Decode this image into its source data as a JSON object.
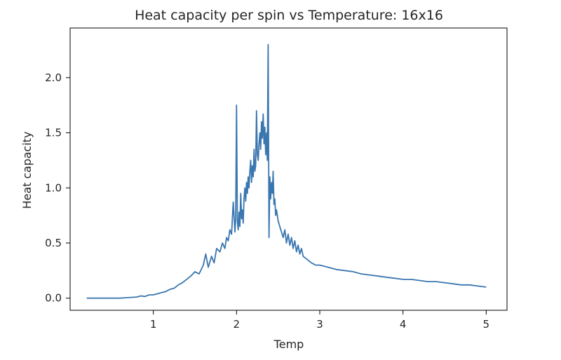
{
  "chart_data": {
    "type": "line",
    "title": "Heat capacity per spin vs Temperature: 16x16",
    "xlabel": "Temp",
    "ylabel": "Heat capacity",
    "xlim": [
      -0.0,
      5.25
    ],
    "ylim": [
      -0.11,
      2.45
    ],
    "x_ticks": [
      1,
      2,
      3,
      4,
      5
    ],
    "x_tick_labels": [
      "1",
      "2",
      "3",
      "4",
      "5"
    ],
    "y_ticks": [
      0.0,
      0.5,
      1.0,
      1.5,
      2.0
    ],
    "y_tick_labels": [
      "0.0",
      "0.5",
      "1.0",
      "1.5",
      "2.0"
    ],
    "grid": false,
    "legend": "none",
    "series": [
      {
        "color": "#3a76af",
        "x": [
          0.2,
          0.3,
          0.4,
          0.5,
          0.6,
          0.7,
          0.8,
          0.85,
          0.9,
          0.95,
          1.0,
          1.05,
          1.1,
          1.15,
          1.2,
          1.25,
          1.3,
          1.35,
          1.4,
          1.45,
          1.5,
          1.55,
          1.6,
          1.63,
          1.66,
          1.7,
          1.73,
          1.76,
          1.8,
          1.83,
          1.86,
          1.88,
          1.9,
          1.92,
          1.94,
          1.96,
          1.98,
          1.99,
          2.0,
          2.01,
          2.02,
          2.03,
          2.04,
          2.05,
          2.06,
          2.07,
          2.08,
          2.09,
          2.1,
          2.11,
          2.12,
          2.13,
          2.14,
          2.15,
          2.16,
          2.17,
          2.18,
          2.19,
          2.2,
          2.21,
          2.22,
          2.23,
          2.24,
          2.25,
          2.26,
          2.27,
          2.28,
          2.29,
          2.3,
          2.31,
          2.32,
          2.33,
          2.34,
          2.35,
          2.36,
          2.37,
          2.38,
          2.39,
          2.4,
          2.41,
          2.42,
          2.43,
          2.44,
          2.45,
          2.46,
          2.47,
          2.48,
          2.5,
          2.52,
          2.54,
          2.56,
          2.58,
          2.6,
          2.62,
          2.64,
          2.66,
          2.68,
          2.7,
          2.72,
          2.74,
          2.76,
          2.78,
          2.8,
          2.85,
          2.9,
          2.95,
          3.0,
          3.1,
          3.2,
          3.3,
          3.4,
          3.5,
          3.6,
          3.7,
          3.8,
          3.9,
          4.0,
          4.1,
          4.2,
          4.3,
          4.4,
          4.5,
          4.6,
          4.7,
          4.8,
          4.9,
          5.0
        ],
        "y": [
          0.0,
          0.0,
          0.0,
          0.0,
          0.0,
          0.005,
          0.01,
          0.02,
          0.015,
          0.03,
          0.03,
          0.04,
          0.05,
          0.06,
          0.08,
          0.09,
          0.12,
          0.14,
          0.17,
          0.2,
          0.24,
          0.22,
          0.3,
          0.4,
          0.28,
          0.38,
          0.32,
          0.45,
          0.42,
          0.5,
          0.45,
          0.55,
          0.52,
          0.62,
          0.58,
          0.87,
          0.6,
          0.72,
          1.75,
          0.7,
          0.62,
          0.78,
          0.65,
          0.95,
          0.72,
          0.8,
          0.68,
          0.9,
          1.0,
          0.88,
          1.05,
          0.95,
          1.1,
          1.0,
          1.15,
          1.25,
          1.05,
          1.2,
          1.1,
          1.35,
          1.15,
          1.2,
          1.7,
          1.3,
          1.25,
          1.4,
          1.5,
          1.35,
          1.6,
          1.45,
          1.67,
          1.4,
          1.55,
          1.3,
          1.5,
          1.25,
          2.3,
          0.55,
          1.1,
          0.9,
          1.05,
          0.95,
          1.15,
          0.85,
          0.9,
          0.75,
          0.8,
          0.7,
          0.65,
          0.6,
          0.55,
          0.62,
          0.5,
          0.58,
          0.48,
          0.55,
          0.45,
          0.52,
          0.42,
          0.48,
          0.4,
          0.45,
          0.38,
          0.35,
          0.32,
          0.3,
          0.3,
          0.28,
          0.26,
          0.25,
          0.24,
          0.22,
          0.21,
          0.2,
          0.19,
          0.18,
          0.17,
          0.17,
          0.16,
          0.15,
          0.15,
          0.14,
          0.13,
          0.12,
          0.12,
          0.11,
          0.1
        ]
      }
    ]
  }
}
